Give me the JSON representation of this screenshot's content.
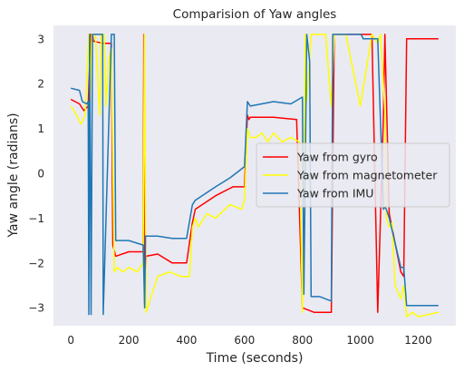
{
  "chart_data": {
    "type": "line",
    "title": "Comparision of Yaw angles",
    "xlabel": "Time (seconds)",
    "ylabel": "Yaw angle (radians)",
    "xlim": [
      -60,
      1330
    ],
    "ylim": [
      -3.4,
      3.3
    ],
    "xticks": [
      0,
      200,
      400,
      600,
      800,
      1000,
      1200
    ],
    "yticks": [
      -3,
      -2,
      -1,
      0,
      1,
      2,
      3
    ],
    "grid": false,
    "legend_position": "center-right",
    "background_color": "#eaeaf2",
    "series": [
      {
        "name": "Yaw from gyro",
        "color": "#ff0000",
        "x": [
          0,
          30,
          45,
          60,
          68,
          75,
          78,
          110,
          140,
          145,
          155,
          200,
          250,
          252,
          255,
          260,
          300,
          350,
          400,
          420,
          430,
          500,
          560,
          600,
          610,
          615,
          620,
          700,
          780,
          800,
          820,
          840,
          860,
          880,
          900,
          910,
          1000,
          1040,
          1060,
          1080,
          1085,
          1100,
          1140,
          1150,
          1160,
          1200,
          1270
        ],
        "y": [
          1.65,
          1.55,
          1.4,
          1.5,
          3.1,
          3.1,
          2.95,
          2.9,
          2.9,
          -1.6,
          -1.85,
          -1.75,
          -1.75,
          3.1,
          -2.9,
          -1.85,
          -1.8,
          -2.0,
          -2.0,
          -1.1,
          -0.8,
          -0.5,
          -0.3,
          -0.3,
          1.3,
          1.2,
          1.25,
          1.25,
          1.2,
          -3.0,
          -3.05,
          -3.1,
          -3.1,
          -3.1,
          -3.1,
          3.1,
          3.1,
          3.1,
          -3.1,
          1.3,
          3.1,
          -0.9,
          -2.2,
          -2.3,
          3.0,
          3.0,
          3.0
        ]
      },
      {
        "name": "Yaw from magnetometer",
        "color": "#ffff00",
        "x": [
          0,
          20,
          35,
          50,
          62,
          66,
          72,
          85,
          100,
          105,
          115,
          122,
          130,
          140,
          150,
          160,
          180,
          200,
          230,
          250,
          254,
          260,
          300,
          340,
          380,
          410,
          420,
          430,
          440,
          470,
          500,
          550,
          590,
          600,
          610,
          620,
          640,
          660,
          680,
          700,
          730,
          760,
          790,
          800,
          810,
          815,
          830,
          860,
          880,
          900,
          910,
          950,
          1000,
          1040,
          1060,
          1070,
          1085,
          1090,
          1100,
          1110,
          1120,
          1140,
          1150,
          1160,
          1180,
          1200,
          1270
        ],
        "y": [
          1.5,
          1.3,
          1.1,
          1.3,
          3.1,
          1.5,
          3.1,
          3.1,
          1.3,
          3.1,
          3.1,
          1.5,
          2.5,
          2.8,
          -2.2,
          -2.1,
          -2.2,
          -2.1,
          -2.2,
          -2.0,
          3.1,
          -3.1,
          -2.3,
          -2.2,
          -2.3,
          -2.3,
          -1.2,
          -1.0,
          -1.2,
          -0.9,
          -1.0,
          -0.7,
          -0.8,
          -0.6,
          1.0,
          0.8,
          0.8,
          0.9,
          0.7,
          0.9,
          0.7,
          0.8,
          0.7,
          -3.1,
          3.1,
          1.6,
          3.1,
          3.1,
          3.1,
          1.5,
          3.1,
          3.1,
          1.5,
          3.1,
          2.9,
          3.1,
          1.4,
          -1.0,
          -1.2,
          -1.1,
          -2.5,
          -2.8,
          -2.5,
          -3.2,
          -3.1,
          -3.2,
          -3.1
        ]
      },
      {
        "name": "Yaw from IMU",
        "color": "#1f77b4",
        "x": [
          0,
          30,
          40,
          55,
          60,
          62,
          65,
          70,
          75,
          80,
          100,
          110,
          112,
          140,
          150,
          155,
          200,
          250,
          255,
          258,
          265,
          300,
          350,
          400,
          420,
          430,
          500,
          550,
          590,
          600,
          610,
          620,
          700,
          760,
          800,
          805,
          815,
          825,
          830,
          860,
          880,
          900,
          905,
          1000,
          1003,
          1010,
          1060,
          1080,
          1085,
          1090,
          1100,
          1140,
          1150,
          1160,
          1200,
          1270
        ],
        "y": [
          1.9,
          1.85,
          1.6,
          1.55,
          1.6,
          -3.15,
          3.1,
          -3.15,
          3.1,
          3.1,
          3.1,
          3.1,
          -3.15,
          3.1,
          3.1,
          -1.5,
          -1.5,
          -1.6,
          -3.0,
          -1.4,
          -1.4,
          -1.4,
          -1.45,
          -1.45,
          -0.7,
          -0.6,
          -0.3,
          -0.1,
          0.1,
          0.15,
          1.6,
          1.5,
          1.6,
          1.55,
          1.7,
          -2.7,
          3.1,
          2.5,
          -2.75,
          -2.75,
          -2.8,
          -2.85,
          3.1,
          3.1,
          3.1,
          3.0,
          3.0,
          -0.8,
          -0.75,
          -0.8,
          -1.0,
          -2.1,
          -2.1,
          -2.95,
          -2.95,
          -2.95
        ]
      }
    ]
  }
}
